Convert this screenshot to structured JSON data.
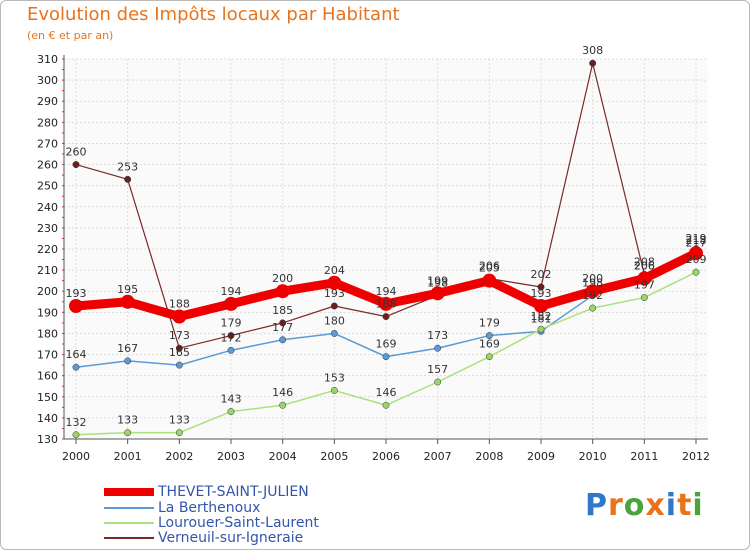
{
  "header": {
    "title": "Evolution des Impôts locaux par Habitant",
    "subtitle": "(en € et par an)"
  },
  "logo": {
    "text": "Proxiti",
    "colors": [
      "#2f77c8",
      "#e8731c",
      "#4aa33c",
      "#e8731c",
      "#2f77c8",
      "#e8731c",
      "#4aa33c"
    ]
  },
  "chart_data": {
    "type": "line",
    "title": "Evolution des Impôts locaux par Habitant",
    "subtitle": "(en € et par an)",
    "xlabel": "",
    "ylabel": "",
    "ylim": [
      130,
      310
    ],
    "y_ticks": [
      130,
      140,
      150,
      160,
      170,
      180,
      190,
      200,
      210,
      220,
      230,
      240,
      250,
      260,
      270,
      280,
      290,
      300,
      310
    ],
    "categories": [
      "2000",
      "2001",
      "2002",
      "2003",
      "2004",
      "2005",
      "2006",
      "2007",
      "2008",
      "2009",
      "2010",
      "2011",
      "2012"
    ],
    "grid": true,
    "legend_position": "bottom-left",
    "series": [
      {
        "name": "THEVET-SAINT-JULIEN",
        "color": "#ee0000",
        "values": [
          193,
          195,
          188,
          194,
          200,
          204,
          194,
          199,
          205,
          193,
          200,
          206,
          218
        ]
      },
      {
        "name": "La Berthenoux",
        "color": "#5b9bd5",
        "values": [
          164,
          167,
          165,
          172,
          177,
          180,
          169,
          173,
          179,
          181,
          198,
          206,
          217
        ]
      },
      {
        "name": "Lourouer-Saint-Laurent",
        "color": "#a9e27d",
        "values": [
          132,
          133,
          133,
          143,
          146,
          153,
          146,
          157,
          169,
          182,
          192,
          197,
          209
        ]
      },
      {
        "name": "Verneuil-sur-Igneraie",
        "color": "#7a2828",
        "values": [
          260,
          253,
          173,
          179,
          185,
          193,
          188,
          198,
          206,
          202,
          308,
          208,
          219
        ]
      }
    ]
  }
}
